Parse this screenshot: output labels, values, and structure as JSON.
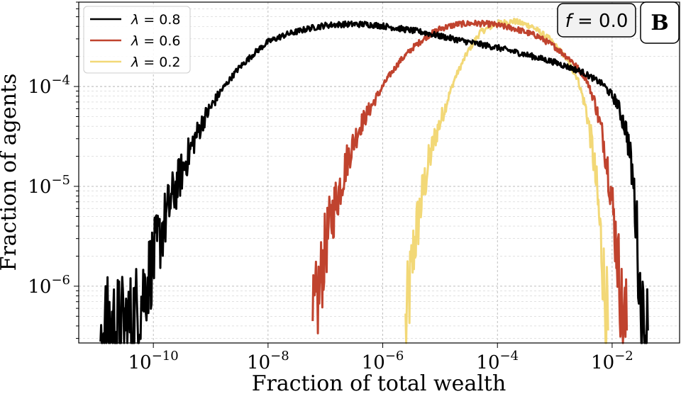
{
  "chart_data": {
    "type": "line",
    "xlabel": "Fraction of total wealth",
    "ylabel": "Fraction of agents",
    "x_scale": "log",
    "y_scale": "log",
    "xlim": [
      5e-12,
      0.15
    ],
    "ylim": [
      2.7e-07,
      0.0007
    ],
    "grid": true,
    "legend_position": "top-left",
    "x_ticks": [
      {
        "value": 1e-10,
        "base": "10",
        "exp": "−10"
      },
      {
        "value": 1e-08,
        "base": "10",
        "exp": "−8"
      },
      {
        "value": 1e-06,
        "base": "10",
        "exp": "−6"
      },
      {
        "value": 0.0001,
        "base": "10",
        "exp": "−4"
      },
      {
        "value": 0.01,
        "base": "10",
        "exp": "−2"
      }
    ],
    "y_ticks": [
      {
        "value": 1e-06,
        "base": "10",
        "exp": "−6"
      },
      {
        "value": 1e-05,
        "base": "10",
        "exp": "−5"
      },
      {
        "value": 0.0001,
        "base": "10",
        "exp": "−4"
      }
    ],
    "annotation_box": "f = 0.0",
    "annotation_var": "f",
    "annotation_eq": " = 0.0",
    "panel_label": "B",
    "series": [
      {
        "name": "λ = 0.8",
        "symbol": "λ",
        "value_label": " = 0.8",
        "color": "#000000",
        "points": [
          [
            1.2e-11,
            3.6e-07
          ],
          [
            2e-11,
            3.8e-07
          ],
          [
            4e-11,
            4.2e-07
          ],
          [
            6e-11,
            7e-07
          ],
          [
            8e-11,
            1.2e-06
          ],
          [
            1e-10,
            1.8e-06
          ],
          [
            1.5e-10,
            4e-06
          ],
          [
            2e-10,
            7e-06
          ],
          [
            3e-10,
            1.3e-05
          ],
          [
            5e-10,
            2.8e-05
          ],
          [
            8e-10,
            5e-05
          ],
          [
            1.5e-09,
            9e-05
          ],
          [
            3e-09,
            0.00015
          ],
          [
            6e-09,
            0.00022
          ],
          [
            1e-08,
            0.00028
          ],
          [
            2e-08,
            0.00033
          ],
          [
            5e-08,
            0.00038
          ],
          [
            1e-07,
            0.00041
          ],
          [
            2e-07,
            0.00042
          ],
          [
            5e-07,
            0.00042
          ],
          [
            1e-06,
            0.000405
          ],
          [
            2e-06,
            0.00038
          ],
          [
            5e-06,
            0.00035
          ],
          [
            1e-05,
            0.00032
          ],
          [
            3e-05,
            0.00028
          ],
          [
            0.0001,
            0.000245
          ],
          [
            0.0003,
            0.00021
          ],
          [
            0.001,
            0.000175
          ],
          [
            0.003,
            0.00014
          ],
          [
            0.007,
            0.000105
          ],
          [
            0.012,
            7e-05
          ],
          [
            0.018,
            3.5e-05
          ],
          [
            0.023,
            1.2e-05
          ],
          [
            0.027,
            3.5e-06
          ],
          [
            0.03,
            1e-06
          ],
          [
            0.034,
            4e-07
          ],
          [
            0.042,
            3.6e-07
          ]
        ]
      },
      {
        "name": "λ = 0.6",
        "symbol": "λ",
        "value_label": " = 0.6",
        "color": "#c0432e",
        "points": [
          [
            6e-08,
            3.6e-07
          ],
          [
            8e-08,
            1e-06
          ],
          [
            1e-07,
            2.5e-06
          ],
          [
            1.3e-07,
            5e-06
          ],
          [
            1.8e-07,
            1e-05
          ],
          [
            2.5e-07,
            2e-05
          ],
          [
            4e-07,
            4e-05
          ],
          [
            7e-07,
            7e-05
          ],
          [
            1.2e-06,
            0.00012
          ],
          [
            2e-06,
            0.00018
          ],
          [
            3.5e-06,
            0.00025
          ],
          [
            6e-06,
            0.00032
          ],
          [
            1e-05,
            0.00038
          ],
          [
            2e-05,
            0.00042
          ],
          [
            4e-05,
            0.00043
          ],
          [
            8e-05,
            0.00042
          ],
          [
            0.0002,
            0.00038
          ],
          [
            0.0005,
            0.00032
          ],
          [
            0.001,
            0.00025
          ],
          [
            0.002,
            0.00018
          ],
          [
            0.0035,
            0.00012
          ],
          [
            0.005,
            7e-05
          ],
          [
            0.007,
            3e-05
          ],
          [
            0.009,
            1.2e-05
          ],
          [
            0.011,
            4e-06
          ],
          [
            0.013,
            1.5e-06
          ],
          [
            0.015,
            5e-07
          ],
          [
            0.018,
            3.6e-07
          ]
        ]
      },
      {
        "name": "λ = 0.2",
        "symbol": "λ",
        "value_label": " = 0.2",
        "color": "#f2d877",
        "points": [
          [
            2.5e-06,
            3.6e-07
          ],
          [
            3e-06,
            1e-06
          ],
          [
            3.5e-06,
            2.5e-06
          ],
          [
            4.5e-06,
            6e-06
          ],
          [
            6e-06,
            1.5e-05
          ],
          [
            8e-06,
            3e-05
          ],
          [
            1.2e-05,
            6e-05
          ],
          [
            1.8e-05,
            0.00012
          ],
          [
            3e-05,
            0.00022
          ],
          [
            5e-05,
            0.00035
          ],
          [
            0.0001,
            0.00043
          ],
          [
            0.0002,
            0.00045
          ],
          [
            0.0004,
            0.0004
          ],
          [
            0.0008,
            0.0003
          ],
          [
            0.0015,
            0.0002
          ],
          [
            0.0025,
            0.00012
          ],
          [
            0.0035,
            6e-05
          ],
          [
            0.0045,
            2.5e-05
          ],
          [
            0.0055,
            8e-06
          ],
          [
            0.0065,
            2.5e-06
          ],
          [
            0.0075,
            8e-07
          ],
          [
            0.0085,
            3.6e-07
          ]
        ]
      }
    ]
  }
}
